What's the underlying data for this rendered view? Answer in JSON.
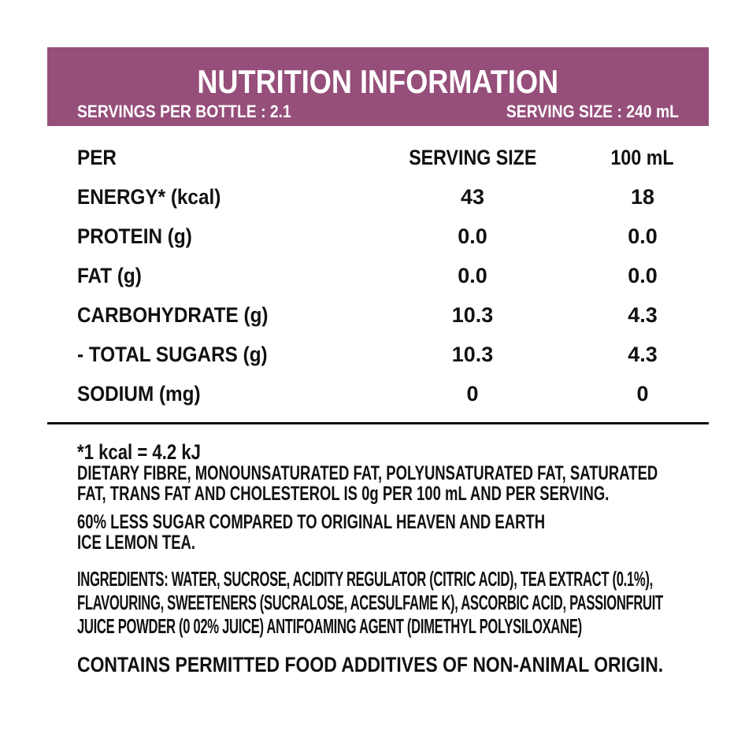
{
  "header": {
    "title": "NUTRITION INFORMATION",
    "servings_per_bottle": "SERVINGS PER BOTTLE : 2.1",
    "serving_size": "SERVING SIZE : 240 mL",
    "banner_color": "#964e7a"
  },
  "table": {
    "columns": [
      "PER",
      "SERVING SIZE",
      "100 mL"
    ],
    "rows": [
      {
        "label": "ENERGY* (kcal)",
        "serving": "43",
        "per100": "18"
      },
      {
        "label": "PROTEIN (g)",
        "serving": "0.0",
        "per100": "0.0"
      },
      {
        "label": "FAT (g)",
        "serving": "0.0",
        "per100": "0.0"
      },
      {
        "label": "CARBOHYDRATE (g)",
        "serving": "10.3",
        "per100": "4.3"
      },
      {
        "label": "- TOTAL SUGARS (g)",
        "serving": "10.3",
        "per100": "4.3"
      },
      {
        "label": "SODIUM (mg)",
        "serving": "0",
        "per100": "0"
      }
    ]
  },
  "notes": {
    "kcal": "*1 kcal = 4.2 kJ",
    "fibre_1": "DIETARY FIBRE, MONOUNSATURATED FAT, POLYUNSATURATED FAT, SATURATED",
    "fibre_2": "FAT, TRANS FAT AND CHOLESTEROL IS 0g PER 100 mL AND PER SERVING.",
    "sugar_1": "60% LESS SUGAR COMPARED TO ORIGINAL HEAVEN AND EARTH",
    "sugar_2": "ICE LEMON TEA.",
    "ingredients_1": "INGREDIENTS: WATER, SUCROSE, ACIDITY REGULATOR (CITRIC ACID), TEA EXTRACT (0.1%),",
    "ingredients_2": "FLAVOURING, SWEETENERS (SUCRALOSE, ACESULFAME K), ASCORBIC ACID, PASSIONFRUIT",
    "ingredients_3": "JUICE POWDER (0 02% JUICE)  ANTIFOAMING AGENT (DIMETHYL POLYSILOXANE)",
    "additives": "CONTAINS PERMITTED FOOD ADDITIVES OF NON-ANIMAL ORIGIN."
  }
}
